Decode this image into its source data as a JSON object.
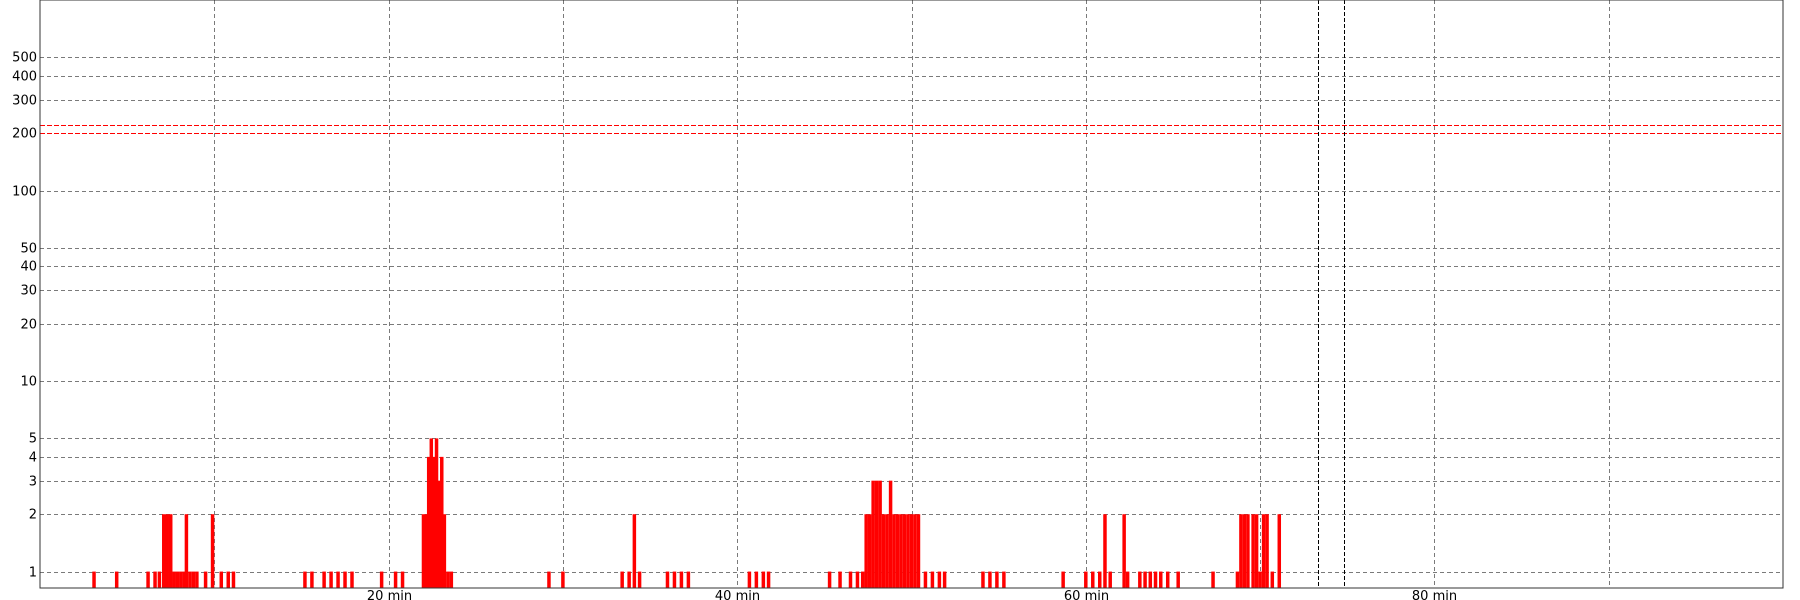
{
  "chart_data": {
    "type": "bar",
    "title": "",
    "xlabel": "",
    "ylabel": "",
    "y_scale": "log",
    "xlim": [
      0,
      100
    ],
    "ylim": [
      0.82,
      1000
    ],
    "grid": true,
    "x_ticks": [
      {
        "value": 10,
        "label": ""
      },
      {
        "value": 20,
        "label": "20 min"
      },
      {
        "value": 30,
        "label": ""
      },
      {
        "value": 40,
        "label": "40 min"
      },
      {
        "value": 50,
        "label": ""
      },
      {
        "value": 60,
        "label": "60 min"
      },
      {
        "value": 70,
        "label": ""
      },
      {
        "value": 80,
        "label": "80 min"
      },
      {
        "value": 90,
        "label": ""
      }
    ],
    "y_ticks": [
      {
        "value": 1,
        "label": "1"
      },
      {
        "value": 2,
        "label": "2"
      },
      {
        "value": 3,
        "label": "3"
      },
      {
        "value": 4,
        "label": "4"
      },
      {
        "value": 5,
        "label": "5"
      },
      {
        "value": 10,
        "label": "10"
      },
      {
        "value": 20,
        "label": "20"
      },
      {
        "value": 30,
        "label": "30"
      },
      {
        "value": 40,
        "label": "40"
      },
      {
        "value": 50,
        "label": "50"
      },
      {
        "value": 100,
        "label": "100"
      },
      {
        "value": 200,
        "label": "200"
      },
      {
        "value": 300,
        "label": "300"
      },
      {
        "value": 400,
        "label": "400"
      },
      {
        "value": 500,
        "label": "500"
      }
    ],
    "threshold_lines": [
      {
        "value": 200,
        "color": "#ff0000",
        "style": "dashed"
      },
      {
        "value": 220,
        "color": "#ff0000",
        "style": "dashed"
      }
    ],
    "markers": [
      {
        "x": 73.3,
        "color": "#000000",
        "style": "dashed"
      },
      {
        "x": 74.8,
        "color": "#000000",
        "style": "dashed"
      }
    ],
    "series": [
      {
        "color": "#ff0000",
        "points": [
          {
            "t": 3.0,
            "v": 1
          },
          {
            "t": 4.3,
            "v": 1
          },
          {
            "t": 6.1,
            "v": 1
          },
          {
            "t": 6.5,
            "v": 1
          },
          {
            "t": 6.75,
            "v": 1
          },
          {
            "t": 7.0,
            "v": 2
          },
          {
            "t": 7.2,
            "v": 2
          },
          {
            "t": 7.4,
            "v": 2
          },
          {
            "t": 7.6,
            "v": 1
          },
          {
            "t": 7.8,
            "v": 1
          },
          {
            "t": 8.0,
            "v": 1
          },
          {
            "t": 8.2,
            "v": 1
          },
          {
            "t": 8.3,
            "v": 2
          },
          {
            "t": 8.5,
            "v": 1
          },
          {
            "t": 8.7,
            "v": 1
          },
          {
            "t": 8.9,
            "v": 1
          },
          {
            "t": 9.4,
            "v": 1
          },
          {
            "t": 9.8,
            "v": 2
          },
          {
            "t": 10.3,
            "v": 1
          },
          {
            "t": 10.7,
            "v": 1
          },
          {
            "t": 11.0,
            "v": 1
          },
          {
            "t": 15.1,
            "v": 1
          },
          {
            "t": 15.5,
            "v": 1
          },
          {
            "t": 16.2,
            "v": 1
          },
          {
            "t": 16.6,
            "v": 1
          },
          {
            "t": 17.0,
            "v": 1
          },
          {
            "t": 17.4,
            "v": 1
          },
          {
            "t": 17.8,
            "v": 1
          },
          {
            "t": 19.5,
            "v": 1
          },
          {
            "t": 20.3,
            "v": 1
          },
          {
            "t": 20.7,
            "v": 1
          },
          {
            "t": 21.9,
            "v": 2
          },
          {
            "t": 22.05,
            "v": 2
          },
          {
            "t": 22.2,
            "v": 4
          },
          {
            "t": 22.35,
            "v": 5
          },
          {
            "t": 22.5,
            "v": 4
          },
          {
            "t": 22.65,
            "v": 5
          },
          {
            "t": 22.8,
            "v": 3
          },
          {
            "t": 22.95,
            "v": 4
          },
          {
            "t": 23.1,
            "v": 2
          },
          {
            "t": 23.3,
            "v": 1
          },
          {
            "t": 23.5,
            "v": 1
          },
          {
            "t": 29.1,
            "v": 1
          },
          {
            "t": 29.9,
            "v": 1
          },
          {
            "t": 33.3,
            "v": 1
          },
          {
            "t": 33.7,
            "v": 1
          },
          {
            "t": 34.0,
            "v": 2
          },
          {
            "t": 34.3,
            "v": 1
          },
          {
            "t": 35.9,
            "v": 1
          },
          {
            "t": 36.3,
            "v": 1
          },
          {
            "t": 36.7,
            "v": 1
          },
          {
            "t": 37.1,
            "v": 1
          },
          {
            "t": 40.6,
            "v": 1
          },
          {
            "t": 41.0,
            "v": 1
          },
          {
            "t": 41.4,
            "v": 1
          },
          {
            "t": 41.7,
            "v": 1
          },
          {
            "t": 45.2,
            "v": 1
          },
          {
            "t": 45.8,
            "v": 1
          },
          {
            "t": 46.4,
            "v": 1
          },
          {
            "t": 46.8,
            "v": 1
          },
          {
            "t": 47.1,
            "v": 1
          },
          {
            "t": 47.3,
            "v": 2
          },
          {
            "t": 47.5,
            "v": 2
          },
          {
            "t": 47.7,
            "v": 3
          },
          {
            "t": 47.9,
            "v": 3
          },
          {
            "t": 48.1,
            "v": 3
          },
          {
            "t": 48.3,
            "v": 2
          },
          {
            "t": 48.5,
            "v": 2
          },
          {
            "t": 48.7,
            "v": 3
          },
          {
            "t": 48.9,
            "v": 2
          },
          {
            "t": 49.1,
            "v": 2
          },
          {
            "t": 49.3,
            "v": 2
          },
          {
            "t": 49.5,
            "v": 2
          },
          {
            "t": 49.7,
            "v": 2
          },
          {
            "t": 49.9,
            "v": 2
          },
          {
            "t": 50.1,
            "v": 2
          },
          {
            "t": 50.3,
            "v": 2
          },
          {
            "t": 50.7,
            "v": 1
          },
          {
            "t": 51.1,
            "v": 1
          },
          {
            "t": 51.5,
            "v": 1
          },
          {
            "t": 51.8,
            "v": 1
          },
          {
            "t": 54.0,
            "v": 1
          },
          {
            "t": 54.4,
            "v": 1
          },
          {
            "t": 54.8,
            "v": 1
          },
          {
            "t": 55.2,
            "v": 1
          },
          {
            "t": 58.6,
            "v": 1
          },
          {
            "t": 59.9,
            "v": 1
          },
          {
            "t": 60.3,
            "v": 1
          },
          {
            "t": 60.7,
            "v": 1
          },
          {
            "t": 61.0,
            "v": 2
          },
          {
            "t": 61.3,
            "v": 1
          },
          {
            "t": 62.1,
            "v": 2
          },
          {
            "t": 62.3,
            "v": 1
          },
          {
            "t": 63.0,
            "v": 1
          },
          {
            "t": 63.3,
            "v": 1
          },
          {
            "t": 63.6,
            "v": 1
          },
          {
            "t": 63.9,
            "v": 1
          },
          {
            "t": 64.2,
            "v": 1
          },
          {
            "t": 64.6,
            "v": 1
          },
          {
            "t": 65.2,
            "v": 1
          },
          {
            "t": 67.2,
            "v": 1
          },
          {
            "t": 68.6,
            "v": 1
          },
          {
            "t": 68.8,
            "v": 2
          },
          {
            "t": 69.0,
            "v": 2
          },
          {
            "t": 69.2,
            "v": 2
          },
          {
            "t": 69.5,
            "v": 2
          },
          {
            "t": 69.7,
            "v": 2
          },
          {
            "t": 69.9,
            "v": 1
          },
          {
            "t": 70.1,
            "v": 2
          },
          {
            "t": 70.3,
            "v": 2
          },
          {
            "t": 70.6,
            "v": 1
          },
          {
            "t": 71.0,
            "v": 2
          }
        ]
      }
    ]
  }
}
